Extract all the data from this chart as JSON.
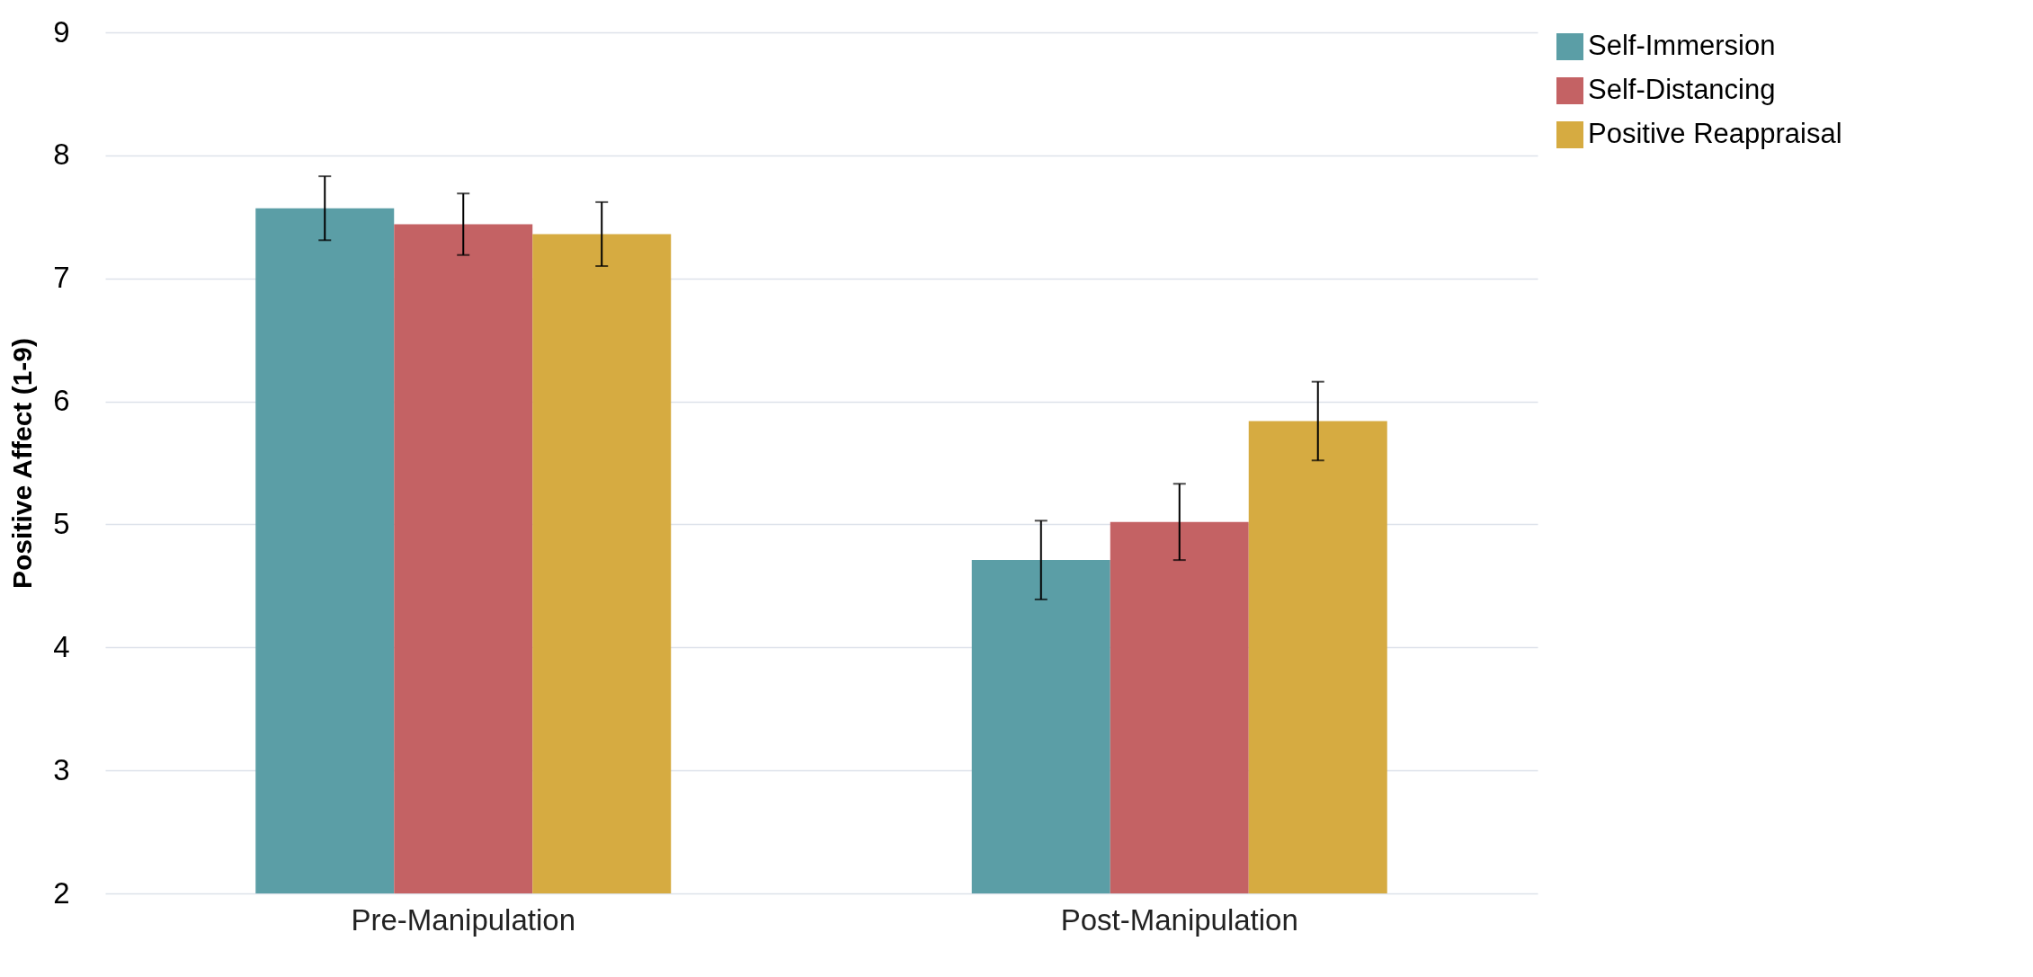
{
  "chart_data": {
    "type": "bar",
    "ylabel": "Positive Affect (1-9)",
    "categories": [
      "Pre-Manipulation",
      "Post-Manipulation"
    ],
    "series": [
      {
        "name": "Self-Immersion",
        "color": "#5b9ea6",
        "values": [
          7.57,
          4.71
        ],
        "errors": [
          0.26,
          0.32
        ]
      },
      {
        "name": "Self-Distancing",
        "color": "#c46264",
        "values": [
          7.44,
          5.02
        ],
        "errors": [
          0.25,
          0.31
        ]
      },
      {
        "name": "Positive Reappraisal",
        "color": "#d6ab41",
        "values": [
          7.36,
          5.84
        ],
        "errors": [
          0.26,
          0.32
        ]
      }
    ],
    "ylim": [
      2,
      9
    ],
    "yticks": [
      2,
      3,
      4,
      5,
      6,
      7,
      8,
      9
    ],
    "grid": "y",
    "legend": "top right"
  }
}
